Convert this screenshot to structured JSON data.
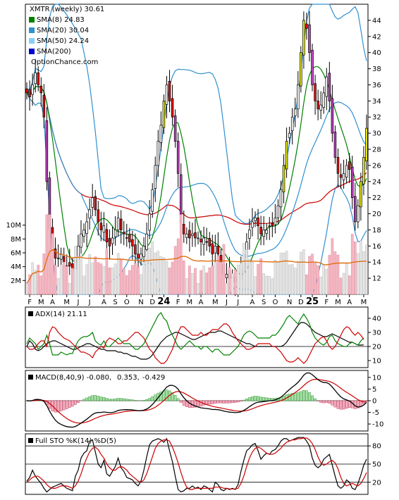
{
  "chart_data": [
    {
      "type": "candlestick",
      "title": "XMTR (weekly) 30.61",
      "watermark": "OptionChance.com",
      "price_ylim": [
        10,
        46
      ],
      "price_ticks": [
        12,
        14,
        16,
        18,
        20,
        22,
        24,
        26,
        28,
        30,
        32,
        34,
        36,
        38,
        40,
        42,
        44
      ],
      "volume_ylim": [
        0,
        12
      ],
      "volume_ticks": [
        {
          "v": 2,
          "label": "2M"
        },
        {
          "v": 4,
          "label": "4M"
        },
        {
          "v": 6,
          "label": "6M"
        },
        {
          "v": 8,
          "label": "8M"
        },
        {
          "v": 10,
          "label": "10M"
        }
      ],
      "month_labels": [
        {
          "i": 1,
          "label": "F"
        },
        {
          "i": 5,
          "label": "M"
        },
        {
          "i": 9,
          "label": "A"
        },
        {
          "i": 14,
          "label": "M"
        },
        {
          "i": 18,
          "label": "J"
        },
        {
          "i": 22,
          "label": "J"
        },
        {
          "i": 27,
          "label": "A"
        },
        {
          "i": 31,
          "label": "S"
        },
        {
          "i": 35,
          "label": "O"
        },
        {
          "i": 40,
          "label": "N"
        },
        {
          "i": 44,
          "label": "D"
        },
        {
          "i": 48,
          "label": "24",
          "bold": true
        },
        {
          "i": 53,
          "label": "F"
        },
        {
          "i": 57,
          "label": "M"
        },
        {
          "i": 61,
          "label": "A"
        },
        {
          "i": 66,
          "label": "M"
        },
        {
          "i": 70,
          "label": "J"
        },
        {
          "i": 74,
          "label": "J"
        },
        {
          "i": 79,
          "label": "A"
        },
        {
          "i": 83,
          "label": "S"
        },
        {
          "i": 87,
          "label": "O"
        },
        {
          "i": 92,
          "label": "N"
        },
        {
          "i": 96,
          "label": "D"
        },
        {
          "i": 100,
          "label": "25",
          "bold": true
        },
        {
          "i": 105,
          "label": "F"
        },
        {
          "i": 109,
          "label": "M"
        },
        {
          "i": 113,
          "label": "A"
        },
        {
          "i": 118,
          "label": "M"
        }
      ],
      "close": [
        35,
        34.5,
        36,
        37.5,
        36,
        35,
        32,
        24,
        18,
        15.5,
        14.5,
        14.5,
        15,
        14,
        13.5,
        13.5,
        13,
        14.5,
        16,
        17.5,
        18,
        19,
        20.5,
        22,
        20.5,
        19,
        18,
        18.5,
        16.5,
        16,
        17,
        18,
        19.5,
        18,
        17.5,
        17,
        16.5,
        16,
        15,
        14.5,
        15,
        16,
        17.5,
        20,
        23,
        26,
        29,
        31,
        34,
        36,
        34,
        32,
        29,
        25,
        19,
        17.5,
        17.5,
        17,
        17.5,
        17,
        17,
        16.5,
        17,
        16.5,
        16,
        15,
        16,
        15,
        14,
        12.5,
        12.5,
        12,
        12,
        11.5,
        12,
        13,
        15,
        16.5,
        18,
        19,
        19.5,
        18.5,
        17.5,
        18,
        18,
        18.5,
        18.5,
        19.5,
        21,
        23,
        26,
        29,
        30,
        32,
        33,
        36,
        40,
        44,
        43,
        40,
        36,
        34,
        33,
        33.5,
        35,
        37,
        34,
        30,
        27,
        25,
        24.5,
        25,
        26,
        25.5,
        22,
        19,
        21,
        24,
        27,
        30.61
      ],
      "candle_colors": {
        "up": "#00a000",
        "down": "#d00000",
        "up_body": "#ffffff",
        "down_body": "#e81010",
        "yellow": "#e8e800",
        "magenta": "#c040c0"
      },
      "series": [
        {
          "name": "SMA(8)",
          "label": "SMA(8) 24.83",
          "color": "#008000",
          "period": 8
        },
        {
          "name": "SMA(20)",
          "label": "SMA(20) 30.04",
          "color": "#3090d0",
          "period": 20
        },
        {
          "name": "SMA(50)",
          "label": "SMA(50) 24.24",
          "color": "#87cefa",
          "period": 50
        },
        {
          "name": "SMA(200)",
          "label": "SMA(200)",
          "color": "#0000cc",
          "period": 200
        }
      ],
      "bollinger_color": "#3090d0",
      "sma50_red_color": "#cc0000",
      "volume_avg_color": "#e07010"
    },
    {
      "type": "line",
      "title": "ADX(14) 21.11",
      "ylim": [
        5,
        48
      ],
      "ticks": [
        10,
        20,
        30,
        40
      ],
      "lines": [
        {
          "name": "ADX",
          "color": "#000000",
          "values": [
            20,
            24,
            22,
            18,
            17,
            18,
            20,
            22,
            23,
            24,
            24,
            23,
            22,
            21,
            20,
            19,
            18,
            18,
            19,
            20,
            21,
            22,
            22,
            21,
            20,
            19,
            18,
            18,
            17,
            17,
            17,
            17,
            16,
            16,
            15,
            15,
            14,
            13,
            13,
            12,
            11,
            11,
            11,
            12,
            14,
            17,
            20,
            23,
            25,
            27,
            28,
            29,
            30,
            30,
            29,
            28,
            27,
            26,
            25,
            25,
            26,
            27,
            28,
            29,
            30,
            30,
            30,
            31,
            31,
            30,
            29,
            28,
            27,
            26,
            25,
            24,
            23,
            22,
            22,
            21,
            20,
            20,
            20,
            20,
            20,
            20,
            20,
            20,
            20,
            20,
            21,
            23,
            26,
            29,
            32,
            35,
            37,
            37,
            36,
            34,
            32,
            30,
            29,
            28,
            27,
            27,
            28,
            29,
            28,
            27,
            26,
            25,
            24,
            23,
            23,
            22,
            21,
            21,
            21.11
          ]
        },
        {
          "name": "+DI",
          "color": "#008000",
          "values": [
            22,
            26,
            24,
            22,
            18,
            20,
            22,
            28,
            22,
            14,
            14,
            14,
            16,
            15,
            14,
            15,
            15,
            20,
            24,
            26,
            27,
            27,
            28,
            30,
            24,
            22,
            21,
            24,
            20,
            20,
            22,
            24,
            26,
            24,
            22,
            22,
            22,
            20,
            18,
            18,
            20,
            22,
            26,
            30,
            34,
            38,
            42,
            44,
            40,
            38,
            32,
            28,
            24,
            20,
            18,
            20,
            22,
            24,
            22,
            20,
            20,
            18,
            20,
            20,
            18,
            16,
            18,
            18,
            16,
            14,
            14,
            14,
            16,
            18,
            20,
            24,
            28,
            30,
            31,
            30,
            28,
            26,
            26,
            26,
            26,
            26,
            28,
            28,
            30,
            33,
            36,
            40,
            42,
            40,
            38,
            36,
            40,
            43,
            40,
            36,
            30,
            26,
            24,
            22,
            21,
            23,
            27,
            28,
            24,
            22,
            21,
            20,
            20,
            22,
            23,
            22,
            21,
            24,
            26
          ]
        },
        {
          "name": "-DI",
          "color": "#cc0000",
          "values": [
            20,
            18,
            18,
            19,
            22,
            24,
            24,
            20,
            30,
            34,
            33,
            30,
            28,
            26,
            25,
            24,
            22,
            20,
            18,
            16,
            16,
            15,
            14,
            12,
            16,
            18,
            20,
            19,
            24,
            26,
            25,
            24,
            22,
            22,
            24,
            24,
            26,
            28,
            30,
            30,
            28,
            26,
            22,
            18,
            16,
            12,
            10,
            8,
            8,
            10,
            14,
            18,
            24,
            30,
            34,
            34,
            32,
            30,
            28,
            28,
            28,
            30,
            28,
            28,
            30,
            32,
            32,
            32,
            34,
            36,
            36,
            34,
            30,
            27,
            24,
            22,
            20,
            18,
            18,
            19,
            20,
            22,
            22,
            22,
            22,
            22,
            20,
            20,
            18,
            16,
            13,
            10,
            9,
            9,
            10,
            12,
            10,
            8,
            10,
            14,
            18,
            22,
            24,
            26,
            27,
            24,
            20,
            18,
            20,
            24,
            28,
            32,
            34,
            33,
            30,
            28,
            30,
            28,
            25
          ]
        }
      ]
    },
    {
      "type": "line",
      "title": "MACD(8,40,9) -0.080, 0.353, -0.429",
      "label_main": "MACD(8,40,9) -0.080,",
      "label_signal": "0.353,",
      "label_hist": "-0.429",
      "ylim": [
        -13,
        13
      ],
      "ticks": [
        -10,
        -5,
        0,
        5,
        10
      ]
    },
    {
      "type": "line",
      "title": "Full STO %K(14) %D(5)",
      "ylim": [
        0,
        100
      ],
      "ticks": [
        20,
        50,
        80
      ],
      "lines": [
        {
          "name": "%K",
          "color": "#000000",
          "values": [
            22,
            28,
            40,
            30,
            24,
            18,
            10,
            4,
            8,
            12,
            14,
            16,
            18,
            14,
            10,
            8,
            6,
            30,
            40,
            60,
            68,
            72,
            88,
            90,
            70,
            50,
            44,
            56,
            34,
            30,
            38,
            46,
            60,
            44,
            38,
            28,
            26,
            24,
            18,
            14,
            22,
            40,
            62,
            82,
            88,
            90,
            92,
            90,
            86,
            92,
            72,
            54,
            30,
            8,
            4,
            6,
            10,
            10,
            14,
            10,
            12,
            8,
            14,
            12,
            8,
            4,
            20,
            16,
            8,
            6,
            10,
            8,
            10,
            8,
            16,
            38,
            56,
            72,
            76,
            82,
            84,
            72,
            58,
            64,
            68,
            66,
            72,
            74,
            80,
            88,
            92,
            92,
            88,
            90,
            92,
            94,
            94,
            94,
            88,
            80,
            60,
            48,
            44,
            48,
            58,
            62,
            66,
            48,
            30,
            14,
            10,
            14,
            24,
            20,
            10,
            8,
            18,
            32,
            48,
            58
          ]
        },
        {
          "name": "%D",
          "color": "#cc0000",
          "values": [
            20,
            24,
            28,
            30,
            30,
            26,
            22,
            16,
            12,
            10,
            10,
            12,
            14,
            14,
            14,
            12,
            10,
            14,
            22,
            34,
            48,
            60,
            70,
            76,
            78,
            74,
            66,
            60,
            50,
            44,
            40,
            40,
            44,
            46,
            44,
            40,
            34,
            30,
            26,
            22,
            20,
            24,
            34,
            48,
            62,
            76,
            84,
            88,
            90,
            90,
            88,
            78,
            66,
            52,
            36,
            22,
            12,
            8,
            8,
            10,
            10,
            10,
            10,
            10,
            10,
            10,
            12,
            12,
            12,
            10,
            10,
            9,
            9,
            9,
            10,
            18,
            30,
            46,
            60,
            70,
            76,
            78,
            76,
            72,
            68,
            66,
            66,
            68,
            72,
            76,
            82,
            86,
            88,
            90,
            90,
            92,
            92,
            93,
            93,
            90,
            84,
            74,
            62,
            52,
            48,
            50,
            54,
            56,
            52,
            42,
            28,
            18,
            14,
            16,
            18,
            16,
            14,
            18,
            26,
            36
          ]
        }
      ]
    }
  ]
}
